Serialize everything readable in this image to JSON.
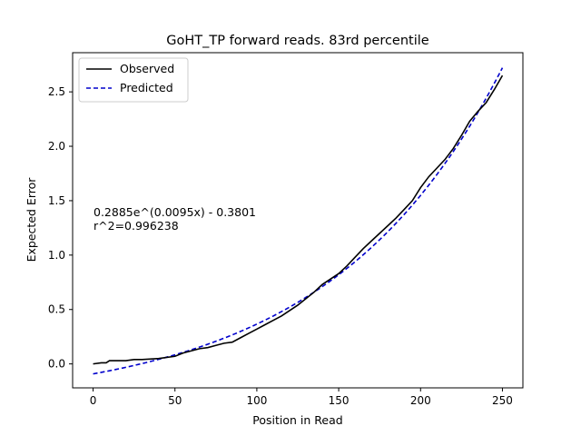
{
  "chart_data": {
    "type": "line",
    "title": "GoHT_TP forward reads. 83rd percentile",
    "xlabel": "Position in Read",
    "ylabel": "Expected Error",
    "xlim": [
      -12.5,
      262.5
    ],
    "ylim": [
      -0.22,
      2.86
    ],
    "xticks": [
      0,
      50,
      100,
      150,
      200,
      250
    ],
    "yticks": [
      0.0,
      0.5,
      1.0,
      1.5,
      2.0,
      2.5
    ],
    "xtick_labels": [
      "0",
      "50",
      "100",
      "150",
      "200",
      "250"
    ],
    "ytick_labels": [
      "0.0",
      "0.5",
      "1.0",
      "1.5",
      "2.0",
      "2.5"
    ],
    "grid": false,
    "legend_position": "top-left",
    "annotation": [
      "0.2885e^(0.0095x) - 0.3801",
      "r^2=0.996238"
    ],
    "series": [
      {
        "name": "Observed",
        "color": "#000000",
        "style": "solid",
        "x": [
          0,
          5,
          8,
          10,
          20,
          25,
          30,
          40,
          50,
          55,
          60,
          65,
          70,
          75,
          80,
          85,
          90,
          95,
          100,
          105,
          110,
          115,
          120,
          125,
          130,
          135,
          140,
          145,
          150,
          155,
          160,
          165,
          170,
          175,
          180,
          185,
          190,
          195,
          200,
          205,
          210,
          215,
          220,
          225,
          230,
          235,
          240,
          245,
          250
        ],
        "y": [
          0.0,
          0.01,
          0.01,
          0.03,
          0.03,
          0.04,
          0.04,
          0.05,
          0.07,
          0.1,
          0.12,
          0.14,
          0.15,
          0.17,
          0.19,
          0.2,
          0.24,
          0.28,
          0.32,
          0.36,
          0.4,
          0.44,
          0.49,
          0.54,
          0.6,
          0.66,
          0.73,
          0.78,
          0.83,
          0.9,
          0.98,
          1.06,
          1.13,
          1.2,
          1.27,
          1.34,
          1.42,
          1.5,
          1.62,
          1.72,
          1.8,
          1.88,
          1.98,
          2.1,
          2.23,
          2.32,
          2.4,
          2.52,
          2.65
        ]
      },
      {
        "name": "Predicted",
        "color": "#0000cc",
        "style": "dashed",
        "formula": "0.2885*exp(0.0095*x) - 0.3801"
      }
    ]
  }
}
